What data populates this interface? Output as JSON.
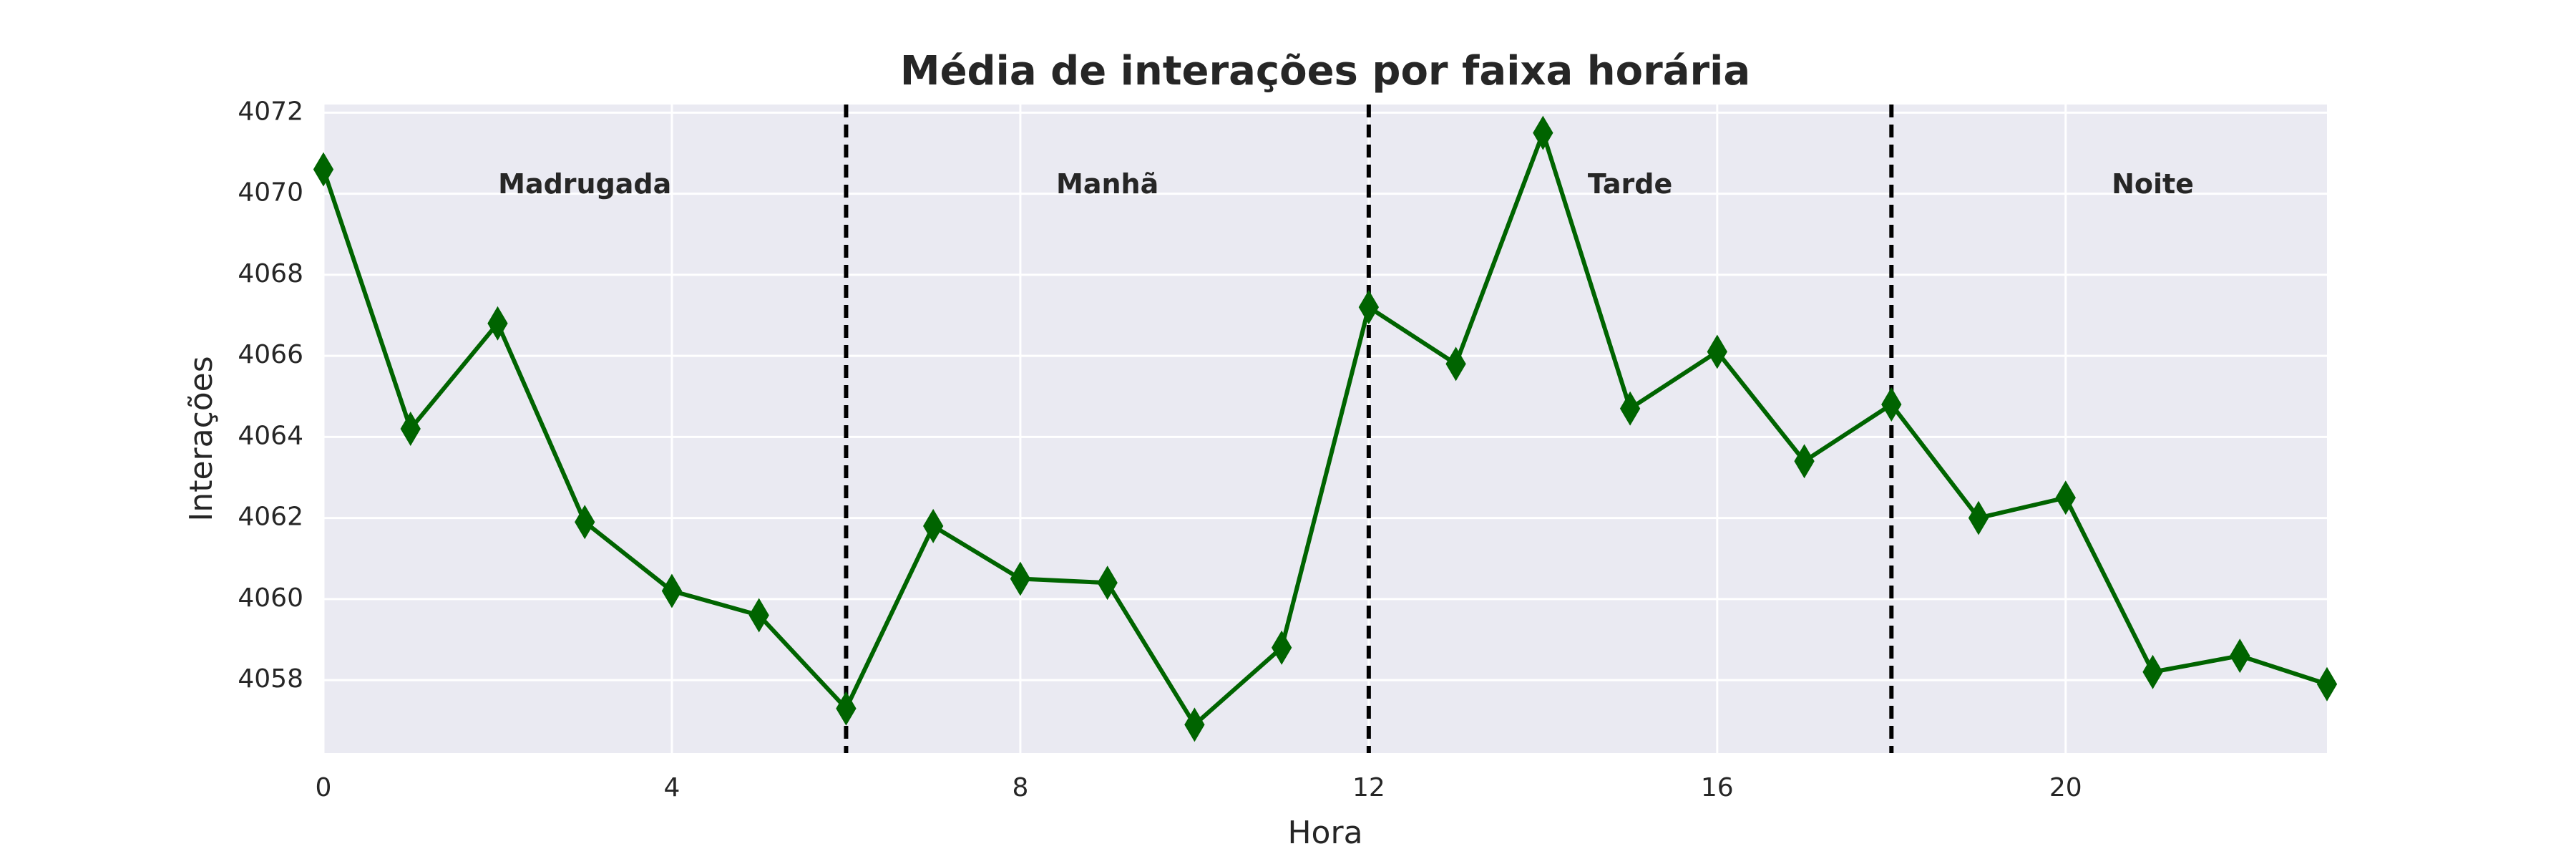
{
  "chart_data": {
    "type": "line",
    "title": "Média de interações por faixa horária",
    "xlabel": "Hora",
    "ylabel": "Interações",
    "xlim": [
      0,
      23
    ],
    "ylim": [
      4056.2,
      4072.2
    ],
    "xticks": [
      0,
      4,
      8,
      12,
      16,
      20
    ],
    "yticks": [
      4058,
      4060,
      4062,
      4064,
      4066,
      4068,
      4070,
      4072
    ],
    "grid": true,
    "background": "#eaeaf2",
    "line_color": "#006400",
    "marker": "diamond",
    "series": [
      {
        "x": [
          0,
          1,
          2,
          3,
          4,
          5,
          6,
          7,
          8,
          9,
          10,
          11,
          12,
          13,
          14,
          15,
          16,
          17,
          18,
          19,
          20,
          21,
          22,
          23
        ],
        "values": [
          4070.6,
          4064.2,
          4066.8,
          4061.9,
          4060.2,
          4059.6,
          4057.3,
          4061.8,
          4060.5,
          4060.4,
          4056.9,
          4058.8,
          4067.2,
          4065.8,
          4071.5,
          4064.7,
          4066.1,
          4063.4,
          4064.8,
          4062.0,
          4062.5,
          4058.2,
          4058.6,
          4057.9
        ]
      }
    ],
    "vlines": [
      6,
      12,
      18
    ],
    "vline_color": "#000000",
    "regions": [
      {
        "label": "Madrugada",
        "x": 3
      },
      {
        "label": "Manhã",
        "x": 9
      },
      {
        "label": "Tarde",
        "x": 15
      },
      {
        "label": "Noite",
        "x": 21
      }
    ],
    "region_label_y": 4070.2
  }
}
